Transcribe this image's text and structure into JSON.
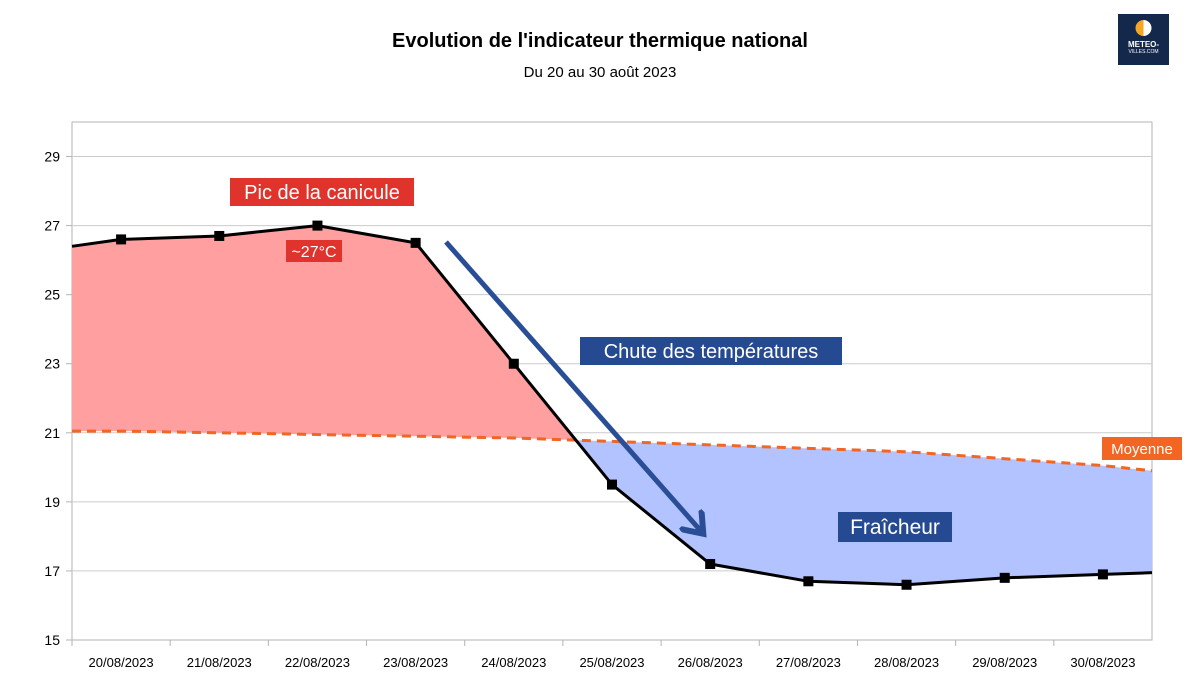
{
  "chart_data": {
    "type": "line",
    "title": "Evolution de l'indicateur thermique national",
    "subtitle": "Du 20 au 30 août 2023",
    "categories": [
      "20/08/2023",
      "21/08/2023",
      "22/08/2023",
      "23/08/2023",
      "24/08/2023",
      "25/08/2023",
      "26/08/2023",
      "27/08/2023",
      "28/08/2023",
      "29/08/2023",
      "30/08/2023"
    ],
    "series": [
      {
        "name": "Indicateur thermique",
        "values": [
          26.6,
          26.7,
          27.0,
          26.5,
          23.0,
          19.5,
          17.2,
          16.7,
          16.6,
          16.8,
          16.9
        ],
        "color": "#000000"
      },
      {
        "name": "Moyenne",
        "values": [
          21.05,
          21.0,
          20.95,
          20.9,
          20.85,
          20.75,
          20.65,
          20.55,
          20.45,
          20.25,
          20.05
        ],
        "color": "#f26522",
        "style": "dashed"
      }
    ],
    "yticks": [
      15,
      17,
      19,
      21,
      23,
      25,
      27,
      29
    ],
    "ylim": [
      15,
      30
    ],
    "grid": true,
    "fill_above_color": "#ff9f9f",
    "fill_below_color": "#b3c3ff",
    "annotations": {
      "peak": "Pic de la canicule",
      "peak_value": "~27°C",
      "drop": "Chute des températures",
      "cool": "Fraîcheur",
      "average": "Moyenne"
    }
  },
  "logo": {
    "line1": "METEO-",
    "line2": "VILLES.COM"
  }
}
